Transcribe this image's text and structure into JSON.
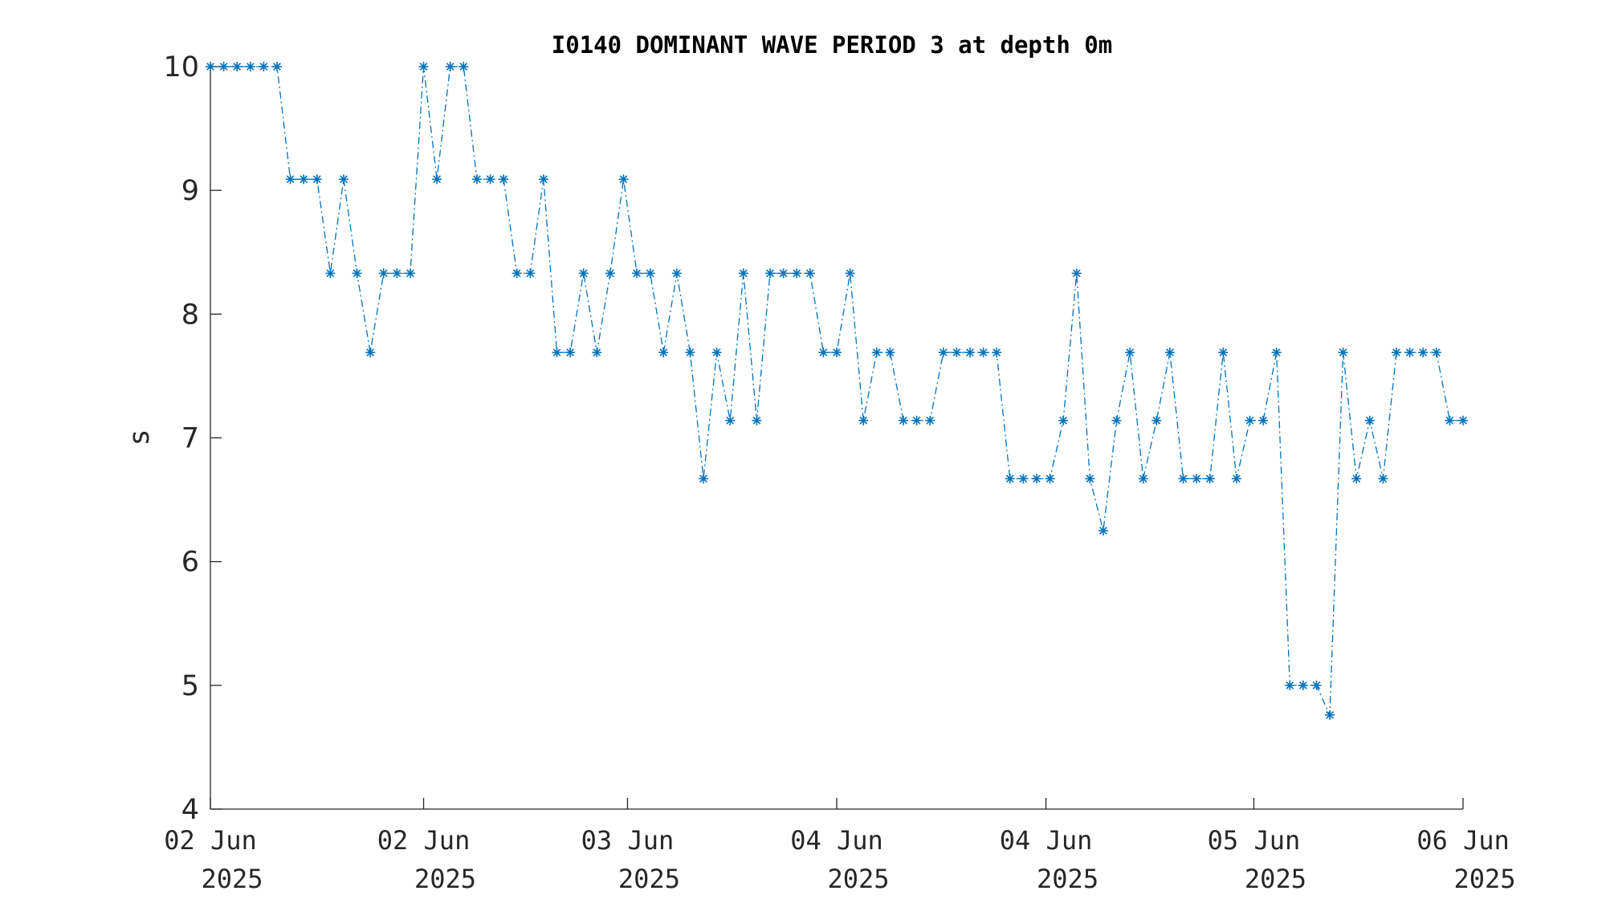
{
  "chart_data": {
    "type": "line",
    "title": "I0140 DOMINANT WAVE PERIOD 3 at depth 0m",
    "xlabel": "",
    "ylabel": "s",
    "ylim": [
      4,
      10
    ],
    "xlim": [
      0,
      94
    ],
    "x_unit": "hours since 02 Jun 2025 00:00",
    "yticks": [
      4,
      5,
      6,
      7,
      8,
      9,
      10
    ],
    "xticks": [
      {
        "at": 0,
        "line1": "02 Jun",
        "line2": "2025"
      },
      {
        "at": 16,
        "line1": "02 Jun",
        "line2": "2025"
      },
      {
        "at": 31.3,
        "line1": "03 Jun",
        "line2": "2025"
      },
      {
        "at": 47,
        "line1": "04 Jun",
        "line2": "2025"
      },
      {
        "at": 62.7,
        "line1": "04 Jun",
        "line2": "2025"
      },
      {
        "at": 78.3,
        "line1": "05 Jun",
        "line2": "2025"
      },
      {
        "at": 94,
        "line1": "06 Jun",
        "line2": "2025"
      }
    ],
    "marker": "asterisk",
    "line_style": "dash-dot",
    "color": "#0072BD",
    "grid": false,
    "series": [
      {
        "name": "",
        "x": [
          0,
          1,
          2,
          3,
          4,
          5,
          6,
          7,
          8,
          9,
          10,
          11,
          12,
          13,
          14,
          15,
          16,
          17,
          18,
          19,
          20,
          21,
          22,
          23,
          24,
          25,
          26,
          27,
          28,
          29,
          30,
          31,
          32,
          33,
          34,
          35,
          36,
          37,
          38,
          39,
          40,
          41,
          42,
          43,
          44,
          45,
          46,
          47,
          48,
          49,
          50,
          51,
          52,
          53,
          54,
          55,
          56,
          57,
          58,
          59,
          60,
          61,
          62,
          63,
          64,
          65,
          66,
          67,
          68,
          69,
          70,
          71,
          72,
          73,
          74,
          75,
          76,
          77,
          78,
          79,
          80,
          81,
          82,
          83,
          84,
          85,
          86,
          87,
          88,
          89,
          90,
          91,
          92,
          93,
          94
        ],
        "values": [
          10,
          10,
          10,
          10,
          10,
          10,
          9.09,
          9.09,
          9.09,
          8.33,
          9.09,
          8.33,
          7.69,
          8.33,
          8.33,
          8.33,
          10,
          9.09,
          10,
          10,
          9.09,
          9.09,
          9.09,
          8.33,
          8.33,
          9.09,
          7.69,
          7.69,
          8.33,
          7.69,
          8.33,
          9.09,
          8.33,
          8.33,
          7.69,
          8.33,
          7.69,
          6.67,
          7.69,
          7.14,
          8.33,
          7.14,
          8.33,
          8.33,
          8.33,
          8.33,
          7.69,
          7.69,
          8.33,
          7.14,
          7.69,
          7.69,
          7.14,
          7.14,
          7.14,
          7.69,
          7.69,
          7.69,
          7.69,
          7.69,
          6.67,
          6.67,
          6.67,
          6.67,
          7.14,
          8.33,
          6.67,
          6.25,
          7.14,
          7.69,
          6.67,
          7.14,
          7.69,
          6.67,
          6.67,
          6.67,
          7.69,
          6.67,
          7.14,
          7.14,
          7.69,
          5,
          5,
          5,
          4.76,
          7.69,
          6.67,
          7.14,
          6.67,
          7.69,
          7.69,
          7.69,
          7.69,
          7.14,
          7.14
        ]
      }
    ]
  }
}
